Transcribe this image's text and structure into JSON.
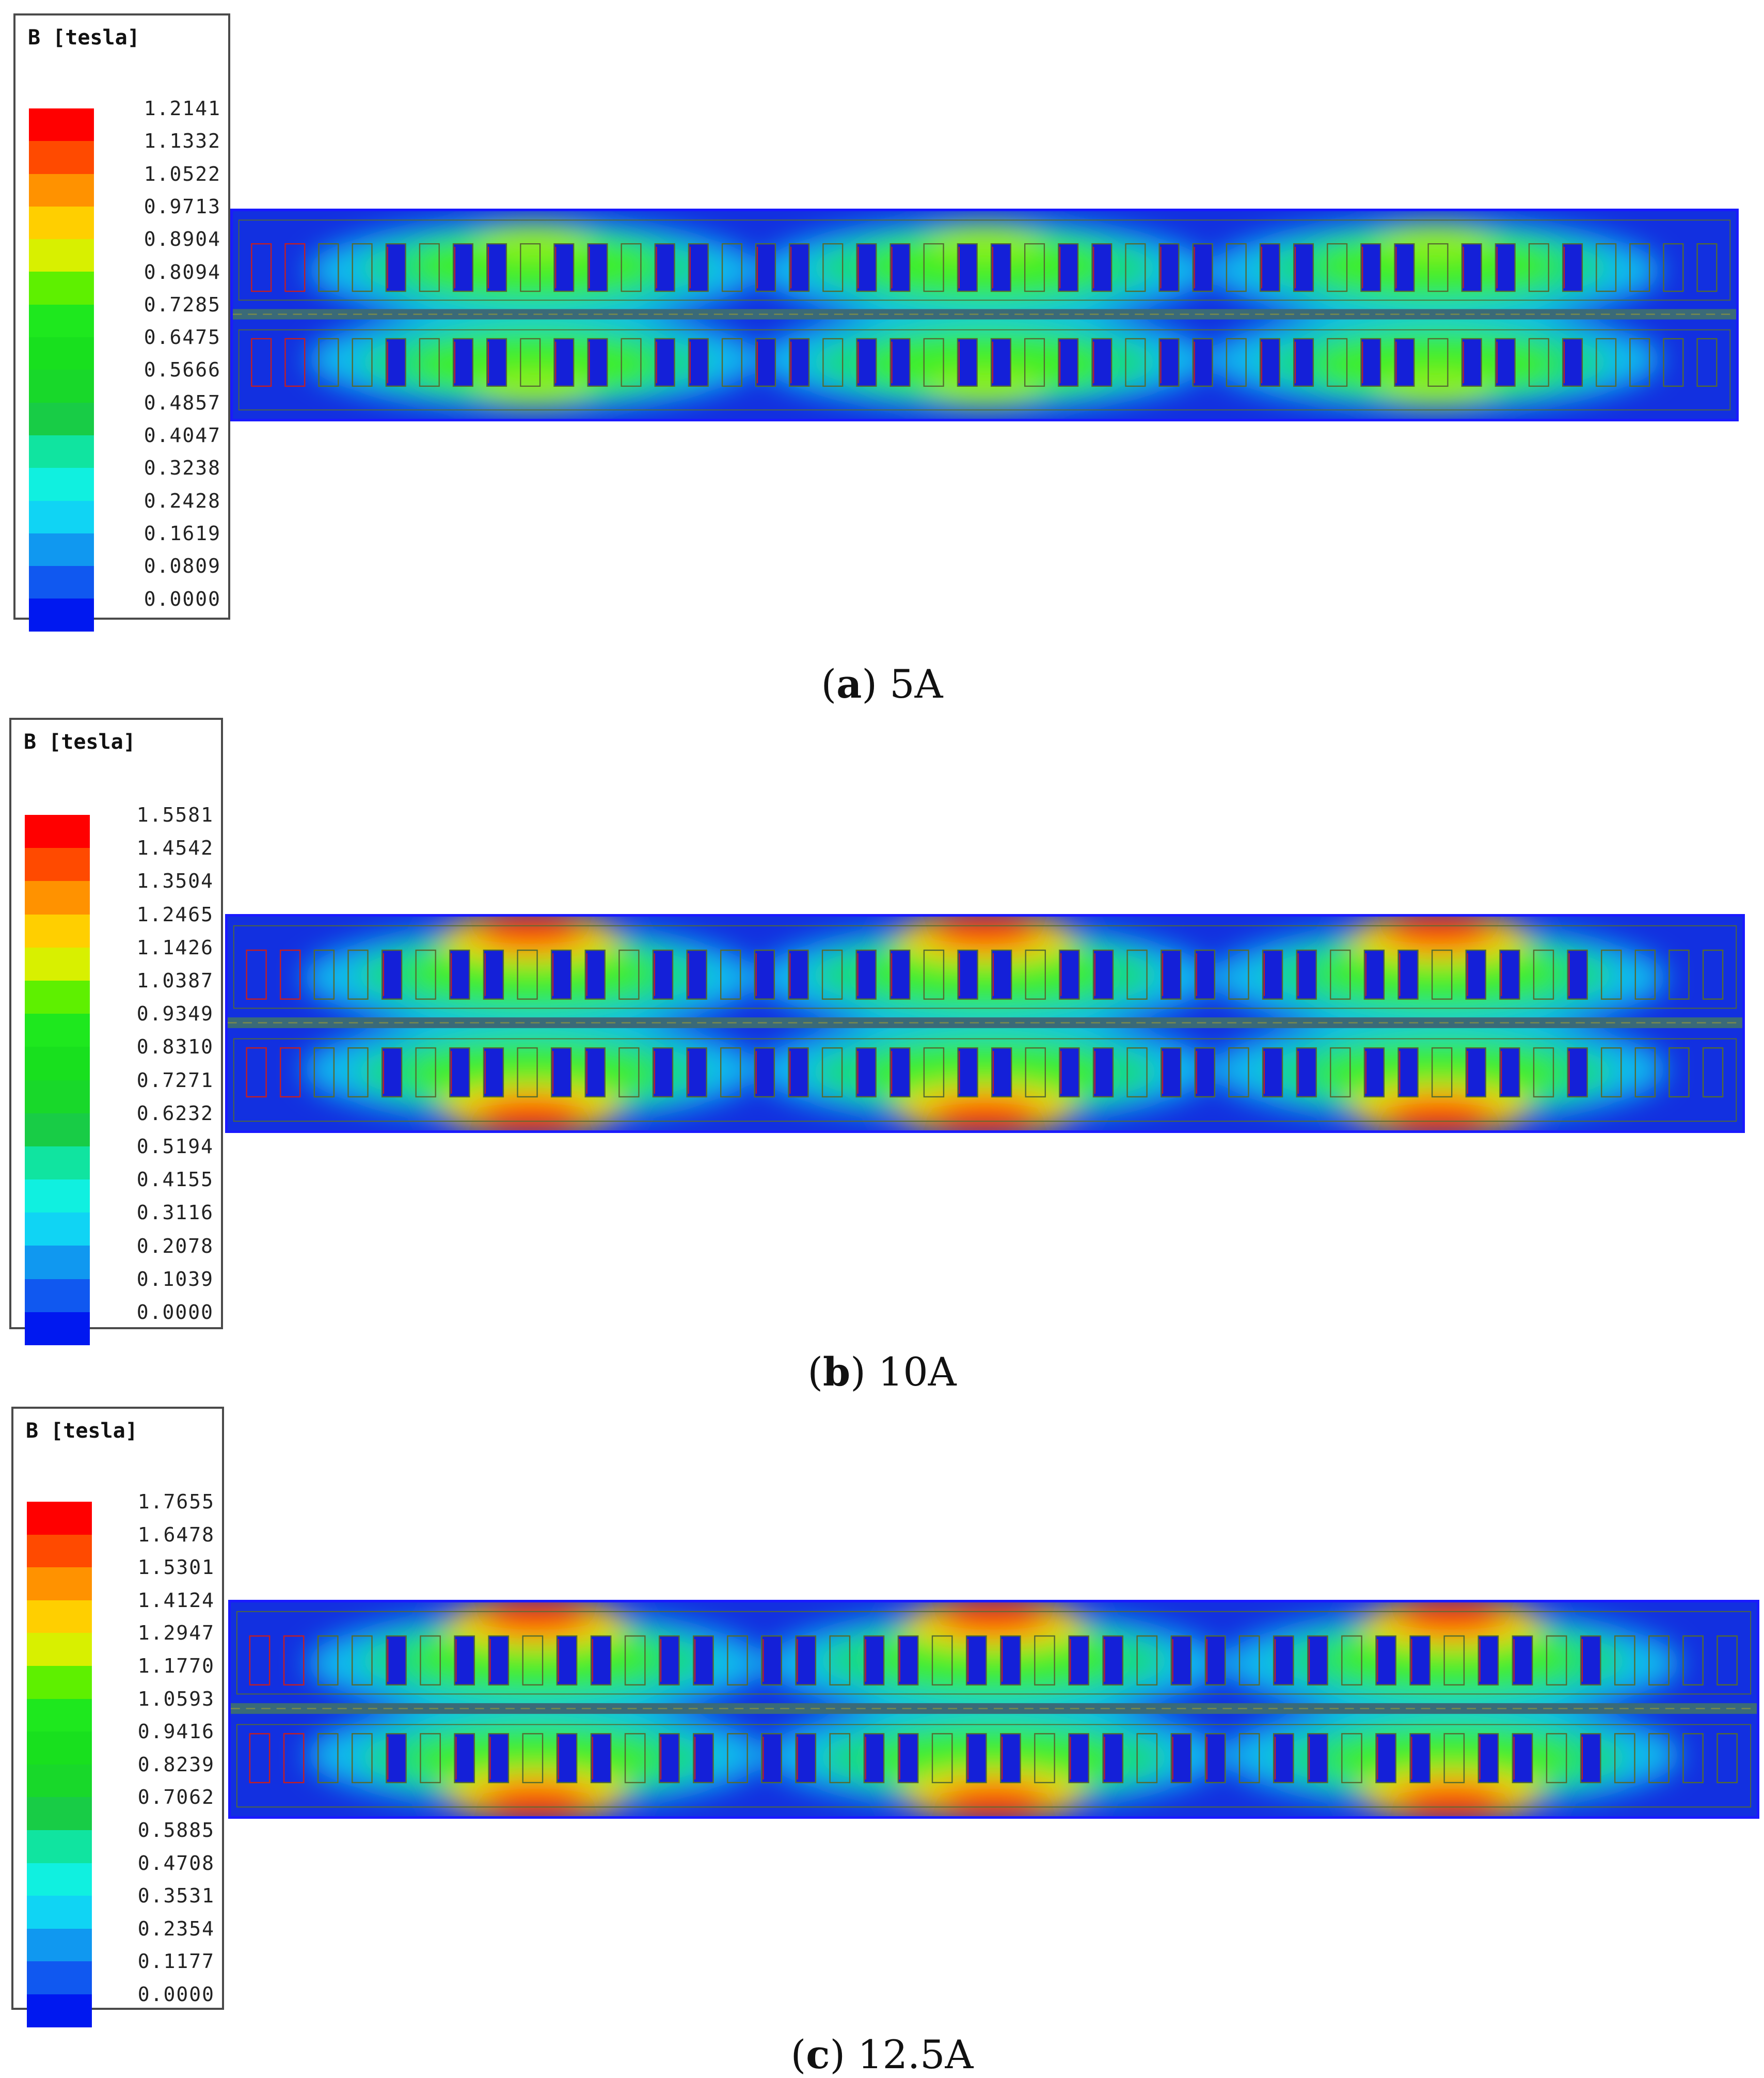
{
  "panels": [
    {
      "id": "a",
      "legend_title": "B [tesla]",
      "ticks": [
        "1.2141",
        "1.1332",
        "1.0522",
        "0.9713",
        "0.8904",
        "0.8094",
        "0.7285",
        "0.6475",
        "0.5666",
        "0.4857",
        "0.4047",
        "0.3238",
        "0.2428",
        "0.1619",
        "0.0809",
        "0.0000"
      ],
      "caption_letter": "a",
      "caption_text": "5A",
      "hotspot_intensity": 0.55
    },
    {
      "id": "b",
      "legend_title": "B [tesla]",
      "ticks": [
        "1.5581",
        "1.4542",
        "1.3504",
        "1.2465",
        "1.1426",
        "1.0387",
        "0.9349",
        "0.8310",
        "0.7271",
        "0.6232",
        "0.5194",
        "0.4155",
        "0.3116",
        "0.2078",
        "0.1039",
        "0.0000"
      ],
      "caption_letter": "b",
      "caption_text": "10A",
      "hotspot_intensity": 1.0
    },
    {
      "id": "c",
      "legend_title": "B [tesla]",
      "ticks": [
        "1.7655",
        "1.6478",
        "1.5301",
        "1.4124",
        "1.2947",
        "1.1770",
        "1.0593",
        "0.9416",
        "0.8239",
        "0.7062",
        "0.5885",
        "0.4708",
        "0.3531",
        "0.2354",
        "0.1177",
        "0.0000"
      ],
      "caption_letter": "c",
      "caption_text": "12.5A",
      "hotspot_intensity": 1.0
    }
  ],
  "colormap": [
    "#ff0000",
    "#ff4a00",
    "#ff9200",
    "#ffcf00",
    "#d8f000",
    "#5ef000",
    "#1ee81e",
    "#18e01e",
    "#18d82a",
    "#18cc46",
    "#10e4a0",
    "#10f0e0",
    "#10d4f4",
    "#1098f0",
    "#1058f0",
    "#0018f0"
  ],
  "colors": {
    "field_background": "#1230e0",
    "frame_border": "#1a1aff",
    "slot_outline": "#556b2f",
    "coil_outline": "#c81e1e"
  }
}
